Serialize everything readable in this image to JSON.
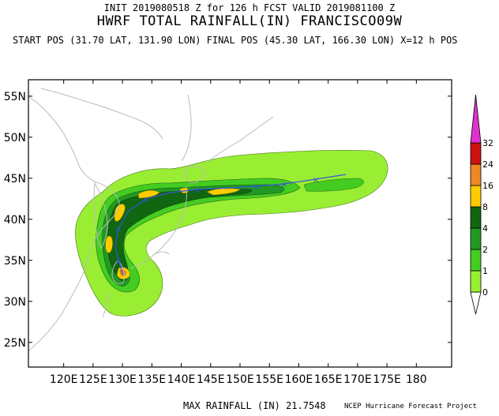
{
  "header": {
    "init_line": "INIT 2019080518 Z for 126 h FCST VALID 2019081100 Z",
    "title": "HWRF TOTAL RAINFALL(IN) FRANCISCO09W",
    "positions": "START POS (31.70 LAT, 131.90 LON)   FINAL POS (45.30 LAT, 166.30 LON)  X=12 h POS"
  },
  "map": {
    "lon_ticks": [
      "120E",
      "125E",
      "130E",
      "135E",
      "140E",
      "145E",
      "150E",
      "155E",
      "160E",
      "165E",
      "170E",
      "175E",
      "180"
    ],
    "lat_ticks": [
      "55N",
      "50N",
      "45N",
      "40N",
      "35N",
      "30N",
      "25N"
    ],
    "lon_range": [
      114,
      186
    ],
    "lat_range": [
      22,
      57
    ],
    "colors": {
      "land": "#bbbbbb",
      "track": "#3355dd",
      "frame": "#000000"
    }
  },
  "legend": {
    "levels": [
      {
        "label": "0",
        "color": "#99ee33"
      },
      {
        "label": "1",
        "color": "#44cc22"
      },
      {
        "label": "2",
        "color": "#229922"
      },
      {
        "label": "4",
        "color": "#116611"
      },
      {
        "label": "8",
        "color": "#ffcc00"
      },
      {
        "label": "16",
        "color": "#ee8822"
      },
      {
        "label": "24",
        "color": "#cc1111"
      },
      {
        "label": "32",
        "color": "#dd33cc"
      }
    ]
  },
  "footer": {
    "max_rainfall": "MAX RAINFALL (IN) 21.7548",
    "source": "NCEP Hurricane Forecast Project"
  }
}
